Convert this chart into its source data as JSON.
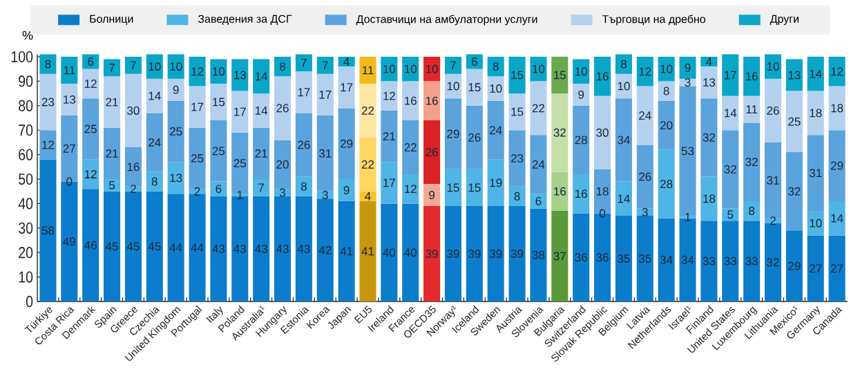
{
  "chart_data": {
    "type": "bar",
    "stacked": true,
    "ylabel": "%",
    "legend": "top",
    "data_labels": true,
    "categories": [
      "Türkiye",
      "Costa Rica",
      "Denmark",
      "Spain",
      "Greece",
      "Czechia",
      "United Kingdom",
      "Portugal",
      "Italy",
      "Poland",
      "Australia¹",
      "Hungary",
      "Estonia",
      "Korea",
      "Japan",
      "EU5",
      "Ireland",
      "France",
      "OECD35",
      "Norway¹",
      "Iceland",
      "Sweden",
      "Austria",
      "Slovenia",
      "Bulgaria",
      "Switzerland",
      "Slovak Republic",
      "Belgium",
      "Latvia",
      "Netherlands",
      "Israel¹",
      "Finland",
      "United States",
      "Luxembourg",
      "Lithuania",
      "Mexico¹",
      "Germany",
      "Canada"
    ],
    "series": [
      {
        "name": "Болници",
        "color": "#0b7dcc",
        "values": [
          58,
          49,
          46,
          45,
          45,
          45,
          44,
          44,
          43,
          43,
          43,
          43,
          43,
          42,
          41,
          41,
          40,
          40,
          39,
          39,
          39,
          39,
          39,
          38,
          37,
          36,
          36,
          35,
          35,
          34,
          34,
          33,
          33,
          33,
          32,
          29,
          27,
          27
        ],
        "colors": [
          "#0b7dcc",
          "#0b7dcc",
          "#0b7dcc",
          "#0b7dcc",
          "#0b7dcc",
          "#0b7dcc",
          "#0b7dcc",
          "#0b7dcc",
          "#0b7dcc",
          "#0b7dcc",
          "#0b7dcc",
          "#0b7dcc",
          "#0b7dcc",
          "#0b7dcc",
          "#0b7dcc",
          "#c9970d",
          "#0b7dcc",
          "#0b7dcc",
          "#e42a2d",
          "#0b7dcc",
          "#0b7dcc",
          "#0b7dcc",
          "#0b7dcc",
          "#0b7dcc",
          "#5a9a3a",
          "#0b7dcc",
          "#0b7dcc",
          "#0b7dcc",
          "#0b7dcc",
          "#0b7dcc",
          "#0b7dcc",
          "#0b7dcc",
          "#0b7dcc",
          "#0b7dcc",
          "#0b7dcc",
          "#0b7dcc",
          "#0b7dcc",
          "#0b7dcc"
        ]
      },
      {
        "name": "Заведения за ДСГ",
        "color": "#4fb4e6",
        "values": [
          null,
          0,
          12,
          5,
          2,
          8,
          13,
          2,
          6,
          1,
          7,
          3,
          8,
          3,
          9,
          4,
          17,
          12,
          9,
          15,
          15,
          19,
          8,
          6,
          null,
          16,
          0,
          14,
          3,
          28,
          1,
          18,
          5,
          8,
          2,
          null,
          10,
          14
        ],
        "value_labels": [
          null,
          null,
          "12",
          "5",
          "2",
          "8",
          "13",
          "2",
          "6",
          "1",
          "7",
          "3",
          "8",
          "3",
          "9",
          "4",
          "17",
          "12",
          "9",
          "15",
          "15",
          "19",
          "8",
          "6",
          null,
          "16",
          null,
          "14",
          "3",
          "28",
          "1",
          "18",
          "5",
          "8",
          "2",
          null,
          "10",
          "14"
        ],
        "colors": [
          "#4fb4e6",
          "#4fb4e6",
          "#4fb4e6",
          "#4fb4e6",
          "#4fb4e6",
          "#4fb4e6",
          "#4fb4e6",
          "#4fb4e6",
          "#4fb4e6",
          "#4fb4e6",
          "#4fb4e6",
          "#4fb4e6",
          "#4fb4e6",
          "#4fb4e6",
          "#4fb4e6",
          "#f6c12a",
          "#4fb4e6",
          "#4fb4e6",
          "#f2a895",
          "#4fb4e6",
          "#4fb4e6",
          "#4fb4e6",
          "#4fb4e6",
          "#4fb4e6",
          "#8dc26b",
          "#4fb4e6",
          "#4fb4e6",
          "#4fb4e6",
          "#4fb4e6",
          "#4fb4e6",
          "#4fb4e6",
          "#4fb4e6",
          "#4fb4e6",
          "#4fb4e6",
          "#4fb4e6",
          "#4fb4e6",
          "#4fb4e6",
          "#4fb4e6"
        ]
      },
      {
        "name": "Доставчици на амбулаторни услуги",
        "color": "#5ba3dd",
        "values": [
          12,
          27,
          25,
          21,
          16,
          24,
          25,
          25,
          25,
          25,
          21,
          20,
          26,
          31,
          29,
          22,
          21,
          22,
          26,
          29,
          26,
          24,
          23,
          24,
          16,
          28,
          18,
          34,
          26,
          20,
          53,
          32,
          32,
          32,
          31,
          32,
          31,
          29
        ],
        "colors": [
          "#5ba3dd",
          "#5ba3dd",
          "#5ba3dd",
          "#5ba3dd",
          "#5ba3dd",
          "#5ba3dd",
          "#5ba3dd",
          "#5ba3dd",
          "#5ba3dd",
          "#5ba3dd",
          "#5ba3dd",
          "#5ba3dd",
          "#5ba3dd",
          "#5ba3dd",
          "#5ba3dd",
          "#fed660",
          "#5ba3dd",
          "#5ba3dd",
          "#d92226",
          "#5ba3dd",
          "#5ba3dd",
          "#5ba3dd",
          "#5ba3dd",
          "#5ba3dd",
          "#a8d08c",
          "#5ba3dd",
          "#5ba3dd",
          "#5ba3dd",
          "#5ba3dd",
          "#5ba3dd",
          "#5ba3dd",
          "#5ba3dd",
          "#5ba3dd",
          "#5ba3dd",
          "#5ba3dd",
          "#5ba3dd",
          "#5ba3dd",
          "#5ba3dd"
        ]
      },
      {
        "name": "Търговци на дребно",
        "color": "#b3d1ef",
        "values": [
          23,
          13,
          12,
          21,
          30,
          14,
          9,
          17,
          15,
          17,
          14,
          26,
          17,
          17,
          17,
          22,
          12,
          16,
          16,
          10,
          15,
          10,
          15,
          22,
          32,
          9,
          30,
          10,
          24,
          8,
          3,
          13,
          14,
          11,
          26,
          25,
          18,
          18
        ],
        "colors": [
          "#b3d1ef",
          "#b3d1ef",
          "#b3d1ef",
          "#b3d1ef",
          "#b3d1ef",
          "#b3d1ef",
          "#b3d1ef",
          "#b3d1ef",
          "#b3d1ef",
          "#b3d1ef",
          "#b3d1ef",
          "#b3d1ef",
          "#b3d1ef",
          "#b3d1ef",
          "#b3d1ef",
          "#fde6a0",
          "#b3d1ef",
          "#b3d1ef",
          "#f3a08c",
          "#b3d1ef",
          "#b3d1ef",
          "#b3d1ef",
          "#b3d1ef",
          "#b3d1ef",
          "#c4dfa8",
          "#b3d1ef",
          "#b3d1ef",
          "#b3d1ef",
          "#b3d1ef",
          "#b3d1ef",
          "#b3d1ef",
          "#b3d1ef",
          "#b3d1ef",
          "#b3d1ef",
          "#b3d1ef",
          "#b3d1ef",
          "#b3d1ef",
          "#b3d1ef"
        ]
      },
      {
        "name": "Други",
        "color": "#0aa6c8",
        "values": [
          8,
          11,
          6,
          7,
          7,
          10,
          10,
          12,
          10,
          13,
          14,
          8,
          7,
          7,
          4,
          11,
          10,
          10,
          10,
          7,
          6,
          8,
          15,
          10,
          15,
          10,
          16,
          8,
          12,
          10,
          9,
          4,
          17,
          16,
          10,
          13,
          14,
          12
        ],
        "colors": [
          "#0aa6c8",
          "#0aa6c8",
          "#0aa6c8",
          "#0aa6c8",
          "#0aa6c8",
          "#0aa6c8",
          "#0aa6c8",
          "#0aa6c8",
          "#0aa6c8",
          "#0aa6c8",
          "#0aa6c8",
          "#0aa6c8",
          "#0aa6c8",
          "#0aa6c8",
          "#0aa6c8",
          "#f6b91a",
          "#0aa6c8",
          "#0aa6c8",
          "#e0252a",
          "#0aa6c8",
          "#0aa6c8",
          "#0aa6c8",
          "#0aa6c8",
          "#0aa6c8",
          "#6aa84f",
          "#0aa6c8",
          "#0aa6c8",
          "#0aa6c8",
          "#0aa6c8",
          "#0aa6c8",
          "#0aa6c8",
          "#0aa6c8",
          "#0aa6c8",
          "#0aa6c8",
          "#0aa6c8",
          "#0aa6c8",
          "#0aa6c8",
          "#0aa6c8"
        ]
      }
    ],
    "annotations": [
      {
        "text": "0",
        "x": "Costa Rica",
        "y": 49
      },
      {
        "text": "0",
        "x": "Slovak Republic",
        "y": 36
      }
    ],
    "ylim": [
      0,
      101
    ],
    "yticks": [
      0,
      10,
      20,
      30,
      40,
      50,
      60,
      70,
      80,
      90,
      100
    ]
  }
}
